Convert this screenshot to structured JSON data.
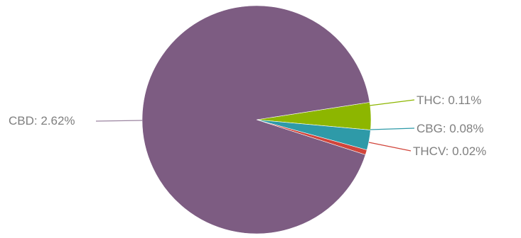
{
  "chart_data": {
    "type": "pie",
    "title": "",
    "start_angle_deg": -8.8,
    "direction": "clockwise",
    "legend": "none",
    "slices": [
      {
        "label": "THC",
        "value": 0.11,
        "display": "THC: 0.11%",
        "color": "#8db600",
        "leader_color": "#8db600"
      },
      {
        "label": "CBG",
        "value": 0.08,
        "display": "CBG: 0.08%",
        "color": "#2e9aa8",
        "leader_color": "#2e9aa8"
      },
      {
        "label": "THCV",
        "value": 0.02,
        "display": "THCV: 0.02%",
        "color": "#d1453b",
        "leader_color": "#d1453b"
      },
      {
        "label": "CBD",
        "value": 2.62,
        "display": "CBD: 2.62%",
        "color": "#7d5c82",
        "leader_color": "#9b84a0"
      }
    ]
  }
}
